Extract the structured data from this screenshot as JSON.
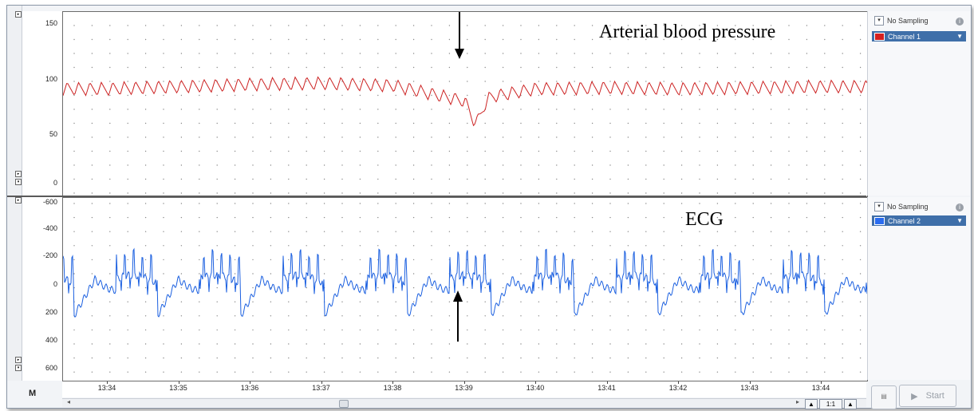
{
  "channels": [
    {
      "label": "Arterial blood pressure",
      "sampling": "No Sampling",
      "channel_name": "Channel 1",
      "color": "#cc2222",
      "yticks": [
        "150",
        "100",
        "50",
        "0"
      ]
    },
    {
      "label": "ECG",
      "sampling": "No Sampling",
      "channel_name": "Channel 2",
      "color": "#1a5fe0",
      "yticks": [
        "-600",
        "-400",
        "-200",
        "0",
        "200",
        "400",
        "600"
      ]
    }
  ],
  "time_axis": [
    "13:34",
    "13:35",
    "13:36",
    "13:37",
    "13:38",
    "13:39",
    "13:40",
    "13:41",
    "13:42",
    "13:43",
    "13:44"
  ],
  "controls": {
    "zoom_label": "1:1",
    "start_label": "Start",
    "info_glyph": "i",
    "m_label": "M"
  },
  "icons": [
    "dropdown-icon",
    "info-icon",
    "play-icon",
    "settings-icon",
    "scroll-left-icon",
    "scroll-right-icon",
    "zoom-out-icon",
    "zoom-in-icon"
  ],
  "chart_data": [
    {
      "type": "line",
      "title": "Arterial blood pressure",
      "x": [
        "13:34",
        "13:35",
        "13:36",
        "13:37",
        "13:38",
        "13:39",
        "13:40",
        "13:41",
        "13:42",
        "13:43",
        "13:44"
      ],
      "ylim": [
        0,
        150
      ],
      "series": [
        {
          "name": "Channel 1",
          "values": [
            93,
            95,
            97,
            98,
            96,
            82,
            93,
            94,
            93,
            94,
            95
          ]
        }
      ],
      "annotations": [
        "downward arrow at 13:39"
      ],
      "grid": true
    },
    {
      "type": "line",
      "title": "ECG",
      "x": [
        "13:34",
        "13:35",
        "13:36",
        "13:37",
        "13:38",
        "13:39",
        "13:40",
        "13:41",
        "13:42",
        "13:43",
        "13:44"
      ],
      "ylim": [
        600,
        -600
      ],
      "series": [
        {
          "name": "Channel 2",
          "values": [
            -60,
            -80,
            -70,
            -90,
            -60,
            -80,
            -70,
            -60,
            -70,
            -80,
            -50
          ]
        }
      ],
      "annotations": [
        "upward arrow at 13:39"
      ],
      "grid": true
    }
  ]
}
